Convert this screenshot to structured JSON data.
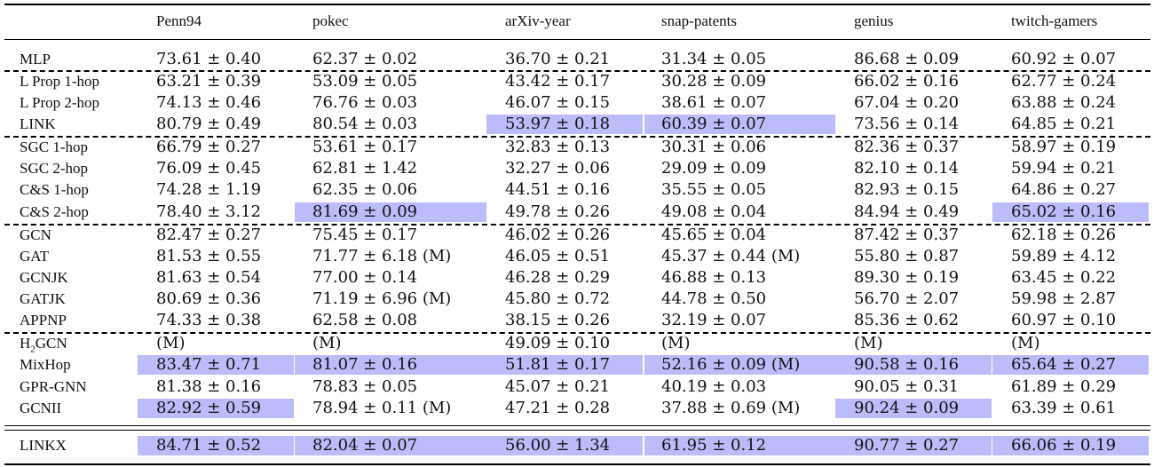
{
  "table": {
    "columns": [
      "Penn94",
      "pokec",
      "arXiv-year",
      "snap-patents",
      "genius",
      "twitch-gamers"
    ],
    "rows": [
      {
        "method": "MLP",
        "values": [
          "73.61 ± 0.40",
          "62.37 ± 0.02",
          "36.70 ± 0.21",
          "31.34 ± 0.05",
          "86.68 ± 0.09",
          "60.92 ± 0.07"
        ],
        "highlight": []
      },
      {
        "method": "L Prop 1-hop",
        "values": [
          "63.21 ± 0.39",
          "53.09 ± 0.05",
          "43.42 ± 0.17",
          "30.28 ± 0.09",
          "66.02 ± 0.16",
          "62.77 ± 0.24"
        ],
        "highlight": []
      },
      {
        "method": "L Prop 2-hop",
        "values": [
          "74.13 ± 0.46",
          "76.76 ± 0.03",
          "46.07 ± 0.15",
          "38.61 ± 0.07",
          "67.04 ± 0.20",
          "63.88 ± 0.24"
        ],
        "highlight": []
      },
      {
        "method": "LINK",
        "values": [
          "80.79 ± 0.49",
          "80.54 ± 0.03",
          "53.97 ± 0.18",
          "60.39 ± 0.07",
          "73.56 ± 0.14",
          "64.85 ± 0.21"
        ],
        "highlight": [
          2,
          3
        ]
      },
      {
        "method": "SGC 1-hop",
        "values": [
          "66.79 ± 0.27",
          "53.61 ± 0.17",
          "32.83 ± 0.13",
          "30.31 ± 0.06",
          "82.36 ± 0.37",
          "58.97 ± 0.19"
        ],
        "highlight": []
      },
      {
        "method": "SGC 2-hop",
        "values": [
          "76.09 ± 0.45",
          "62.81 ± 1.42",
          "32.27 ± 0.06",
          "29.09 ± 0.09",
          "82.10 ± 0.14",
          "59.94 ± 0.21"
        ],
        "highlight": []
      },
      {
        "method": "C&S 1-hop",
        "values": [
          "74.28 ± 1.19",
          "62.35 ± 0.06",
          "44.51 ± 0.16",
          "35.55 ± 0.05",
          "82.93 ± 0.15",
          "64.86 ± 0.27"
        ],
        "highlight": []
      },
      {
        "method": "C&S 2-hop",
        "values": [
          "78.40 ± 3.12",
          "81.69 ± 0.09",
          "49.78 ± 0.26",
          "49.08 ± 0.04",
          "84.94 ± 0.49",
          "65.02 ± 0.16"
        ],
        "highlight": [
          1,
          5
        ]
      },
      {
        "method": "GCN",
        "values": [
          "82.47 ± 0.27",
          "75.45 ± 0.17",
          "46.02 ± 0.26",
          "45.65 ± 0.04",
          "87.42 ± 0.37",
          "62.18 ± 0.26"
        ],
        "highlight": []
      },
      {
        "method": "GAT",
        "values": [
          "81.53 ± 0.55",
          "71.77 ± 6.18 (M)",
          "46.05 ± 0.51",
          "45.37 ± 0.44 (M)",
          "55.80 ± 0.87",
          "59.89 ± 4.12"
        ],
        "highlight": []
      },
      {
        "method": "GCNJK",
        "values": [
          "81.63 ± 0.54",
          "77.00 ± 0.14",
          "46.28 ± 0.29",
          "46.88 ± 0.13",
          "89.30 ± 0.19",
          "63.45 ± 0.22"
        ],
        "highlight": []
      },
      {
        "method": "GATJK",
        "values": [
          "80.69 ± 0.36",
          "71.19 ± 6.96 (M)",
          "45.80 ± 0.72",
          "44.78 ± 0.50",
          "56.70 ± 2.07",
          "59.98 ± 2.87"
        ],
        "highlight": []
      },
      {
        "method": "APPNP",
        "values": [
          "74.33 ± 0.38",
          "62.58 ± 0.08",
          "38.15 ± 0.26",
          "32.19 ± 0.07",
          "85.36 ± 0.62",
          "60.97 ± 0.10"
        ],
        "highlight": []
      },
      {
        "method_main": "H",
        "method_sub": "2",
        "method_rest": "GCN",
        "values": [
          "(M)",
          "(M)",
          "49.09 ± 0.10",
          "(M)",
          "(M)",
          "(M)"
        ],
        "highlight": []
      },
      {
        "method": "MixHop",
        "values": [
          "83.47 ± 0.71",
          "81.07 ± 0.16",
          "51.81 ± 0.17",
          "52.16 ± 0.09 (M)",
          "90.58 ± 0.16",
          "65.64 ± 0.27"
        ],
        "highlight": [
          0,
          1,
          2,
          3,
          4,
          5
        ]
      },
      {
        "method": "GPR-GNN",
        "values": [
          "81.38 ± 0.16",
          "78.83 ± 0.05",
          "45.07 ± 0.21",
          "40.19 ± 0.03",
          "90.05 ± 0.31",
          "61.89 ± 0.29"
        ],
        "highlight": []
      },
      {
        "method": "GCNII",
        "values": [
          "82.92 ± 0.59",
          "78.94 ± 0.11 (M)",
          "47.21 ± 0.28",
          "37.88 ± 0.69 (M)",
          "90.24 ± 0.09",
          "63.39 ± 0.61"
        ],
        "highlight": [
          0,
          4
        ]
      },
      {
        "method": "LINKX",
        "values": [
          "84.71 ± 0.52",
          "82.04 ± 0.07",
          "56.00 ± 1.34",
          "61.95 ± 0.12",
          "90.77 ± 0.27",
          "66.06 ± 0.19"
        ],
        "highlight": [
          0,
          1,
          2,
          3,
          4,
          5
        ]
      }
    ]
  },
  "highlight_color": "#bcbcfa"
}
